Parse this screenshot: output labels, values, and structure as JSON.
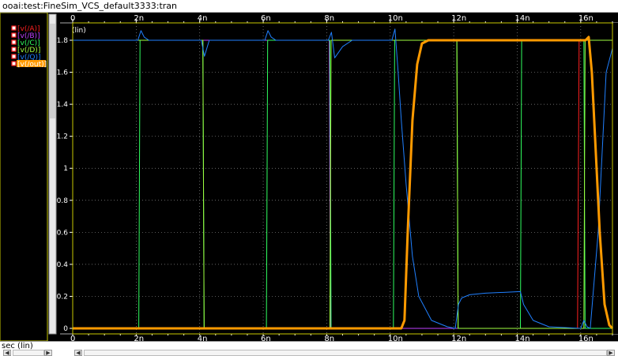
{
  "window": {
    "title": "ooai:test:FineSim_VCS_default3333:tran"
  },
  "footer": {
    "xunit": "sec (lin)",
    "left_arrow": "◀",
    "right_arrow": "▶"
  },
  "colors": {
    "background": "#000000",
    "grid": "#8a8a8a",
    "frame": "#c9c900",
    "axis_text": "#ffffff",
    "ruler_bg": "#000000"
  },
  "chart_data": {
    "type": "line",
    "y_scale_label": "(lin)",
    "xlim": [
      0,
      17
    ],
    "ylim": [
      0,
      1.85
    ],
    "x_ticks": [
      "0",
      "2n",
      "4n",
      "6n",
      "8n",
      "10n",
      "12n",
      "14n",
      "16n"
    ],
    "y_ticks": [
      "0",
      "0.2",
      "0.4",
      "0.6",
      "0.8",
      "1",
      "1.2",
      "1.4",
      "1.6",
      "1.8"
    ],
    "grid": true,
    "legend_position": "left",
    "series": [
      {
        "name": "v(/A)",
        "color": "#ff2020",
        "width": 1,
        "x": [
          0,
          15.9,
          15.95,
          17
        ],
        "y": [
          0,
          0,
          1.8,
          1.8
        ]
      },
      {
        "name": "v(/B)",
        "color": "#c040ff",
        "width": 1,
        "x": [
          0,
          8.08,
          8.12,
          17
        ],
        "y": [
          1.8,
          1.8,
          0,
          0
        ]
      },
      {
        "name": "v(/C)",
        "color": "#30ff60",
        "width": 1,
        "x": [
          0,
          2.08,
          2.12,
          4.1,
          4.14,
          6.1,
          6.14,
          8.1,
          8.14,
          10.1,
          10.14,
          12.1,
          12.14,
          14.1,
          14.14,
          16.1,
          16.14,
          17
        ],
        "y": [
          0,
          0,
          1.8,
          1.8,
          0,
          0,
          1.8,
          1.8,
          0,
          0,
          1.8,
          1.8,
          0,
          0,
          1.8,
          1.8,
          0,
          0
        ]
      },
      {
        "name": "v(/D)",
        "color": "#a0ff40",
        "width": 1,
        "x": [
          0,
          4.1,
          4.14,
          8.1,
          8.14,
          12.1,
          12.14,
          16.1,
          16.14,
          17
        ],
        "y": [
          1.8,
          1.8,
          0,
          0,
          1.8,
          1.8,
          0,
          0,
          1.8,
          1.8
        ]
      },
      {
        "name": "v(/Q)",
        "color": "#2080ff",
        "width": 1,
        "x": [
          0,
          2.05,
          2.15,
          2.25,
          2.4,
          4.05,
          4.15,
          4.3,
          6.05,
          6.15,
          6.25,
          6.4,
          8.05,
          8.15,
          8.25,
          8.5,
          8.8,
          10.05,
          10.15,
          10.25,
          10.35,
          10.5,
          10.7,
          10.9,
          11.3,
          11.8,
          12.05,
          12.15,
          12.25,
          12.5,
          13,
          14.1,
          14.2,
          14.5,
          15,
          16,
          16.1,
          16.2,
          16.3,
          16.55,
          16.8,
          17
        ],
        "y": [
          1.8,
          1.8,
          1.86,
          1.82,
          1.8,
          1.8,
          1.7,
          1.8,
          1.8,
          1.86,
          1.82,
          1.8,
          1.8,
          1.85,
          1.69,
          1.76,
          1.8,
          1.8,
          1.87,
          1.6,
          1.3,
          0.9,
          0.45,
          0.2,
          0.05,
          0.01,
          0,
          0.15,
          0.19,
          0.21,
          0.22,
          0.23,
          0.15,
          0.05,
          0.01,
          0,
          0.05,
          0.01,
          0,
          0.6,
          1.6,
          1.75
        ]
      },
      {
        "name": "v(/out)",
        "color": "#ff9a00",
        "width": 3,
        "x": [
          0,
          10.35,
          10.45,
          10.55,
          10.7,
          10.85,
          11.0,
          11.2,
          11.5,
          16.15,
          16.25,
          16.35,
          16.45,
          16.6,
          16.75,
          16.9,
          17
        ],
        "y": [
          0,
          0,
          0.05,
          0.6,
          1.3,
          1.65,
          1.78,
          1.8,
          1.8,
          1.8,
          1.82,
          1.6,
          1.2,
          0.6,
          0.15,
          0.02,
          0
        ]
      }
    ]
  }
}
